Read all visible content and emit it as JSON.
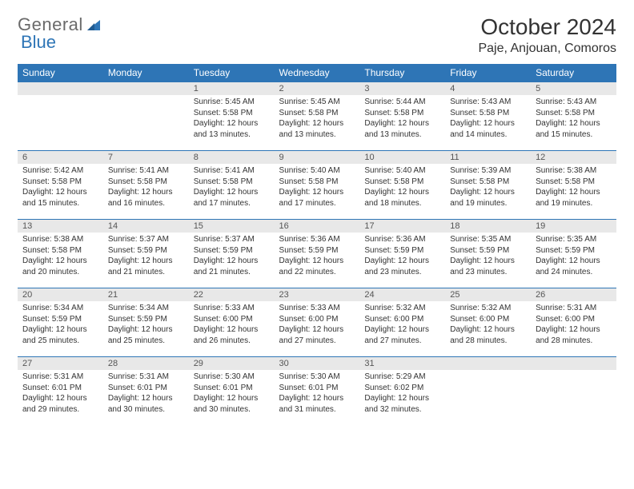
{
  "brand": {
    "part1": "General",
    "part2": "Blue"
  },
  "colors": {
    "header_bg": "#2e75b6",
    "header_text": "#ffffff",
    "daynum_bg": "#e8e8e8",
    "daynum_text": "#555555",
    "body_text": "#333333",
    "row_border": "#2e75b6",
    "logo_gray": "#6a6a6a",
    "logo_blue": "#2e75b6",
    "page_bg": "#ffffff"
  },
  "typography": {
    "month_title_fontsize": 28,
    "location_fontsize": 16,
    "dayheader_fontsize": 12,
    "daynum_fontsize": 11,
    "daydata_fontsize": 10,
    "font_family": "Arial"
  },
  "layout": {
    "columns": 7,
    "rows": 5,
    "start_weekday": "Sunday"
  },
  "title": "October 2024",
  "location": "Paje, Anjouan, Comoros",
  "weekdays": [
    "Sunday",
    "Monday",
    "Tuesday",
    "Wednesday",
    "Thursday",
    "Friday",
    "Saturday"
  ],
  "weeks": [
    [
      null,
      null,
      {
        "n": "1",
        "sr": "Sunrise: 5:45 AM",
        "ss": "Sunset: 5:58 PM",
        "dl": "Daylight: 12 hours and 13 minutes."
      },
      {
        "n": "2",
        "sr": "Sunrise: 5:45 AM",
        "ss": "Sunset: 5:58 PM",
        "dl": "Daylight: 12 hours and 13 minutes."
      },
      {
        "n": "3",
        "sr": "Sunrise: 5:44 AM",
        "ss": "Sunset: 5:58 PM",
        "dl": "Daylight: 12 hours and 13 minutes."
      },
      {
        "n": "4",
        "sr": "Sunrise: 5:43 AM",
        "ss": "Sunset: 5:58 PM",
        "dl": "Daylight: 12 hours and 14 minutes."
      },
      {
        "n": "5",
        "sr": "Sunrise: 5:43 AM",
        "ss": "Sunset: 5:58 PM",
        "dl": "Daylight: 12 hours and 15 minutes."
      }
    ],
    [
      {
        "n": "6",
        "sr": "Sunrise: 5:42 AM",
        "ss": "Sunset: 5:58 PM",
        "dl": "Daylight: 12 hours and 15 minutes."
      },
      {
        "n": "7",
        "sr": "Sunrise: 5:41 AM",
        "ss": "Sunset: 5:58 PM",
        "dl": "Daylight: 12 hours and 16 minutes."
      },
      {
        "n": "8",
        "sr": "Sunrise: 5:41 AM",
        "ss": "Sunset: 5:58 PM",
        "dl": "Daylight: 12 hours and 17 minutes."
      },
      {
        "n": "9",
        "sr": "Sunrise: 5:40 AM",
        "ss": "Sunset: 5:58 PM",
        "dl": "Daylight: 12 hours and 17 minutes."
      },
      {
        "n": "10",
        "sr": "Sunrise: 5:40 AM",
        "ss": "Sunset: 5:58 PM",
        "dl": "Daylight: 12 hours and 18 minutes."
      },
      {
        "n": "11",
        "sr": "Sunrise: 5:39 AM",
        "ss": "Sunset: 5:58 PM",
        "dl": "Daylight: 12 hours and 19 minutes."
      },
      {
        "n": "12",
        "sr": "Sunrise: 5:38 AM",
        "ss": "Sunset: 5:58 PM",
        "dl": "Daylight: 12 hours and 19 minutes."
      }
    ],
    [
      {
        "n": "13",
        "sr": "Sunrise: 5:38 AM",
        "ss": "Sunset: 5:58 PM",
        "dl": "Daylight: 12 hours and 20 minutes."
      },
      {
        "n": "14",
        "sr": "Sunrise: 5:37 AM",
        "ss": "Sunset: 5:59 PM",
        "dl": "Daylight: 12 hours and 21 minutes."
      },
      {
        "n": "15",
        "sr": "Sunrise: 5:37 AM",
        "ss": "Sunset: 5:59 PM",
        "dl": "Daylight: 12 hours and 21 minutes."
      },
      {
        "n": "16",
        "sr": "Sunrise: 5:36 AM",
        "ss": "Sunset: 5:59 PM",
        "dl": "Daylight: 12 hours and 22 minutes."
      },
      {
        "n": "17",
        "sr": "Sunrise: 5:36 AM",
        "ss": "Sunset: 5:59 PM",
        "dl": "Daylight: 12 hours and 23 minutes."
      },
      {
        "n": "18",
        "sr": "Sunrise: 5:35 AM",
        "ss": "Sunset: 5:59 PM",
        "dl": "Daylight: 12 hours and 23 minutes."
      },
      {
        "n": "19",
        "sr": "Sunrise: 5:35 AM",
        "ss": "Sunset: 5:59 PM",
        "dl": "Daylight: 12 hours and 24 minutes."
      }
    ],
    [
      {
        "n": "20",
        "sr": "Sunrise: 5:34 AM",
        "ss": "Sunset: 5:59 PM",
        "dl": "Daylight: 12 hours and 25 minutes."
      },
      {
        "n": "21",
        "sr": "Sunrise: 5:34 AM",
        "ss": "Sunset: 5:59 PM",
        "dl": "Daylight: 12 hours and 25 minutes."
      },
      {
        "n": "22",
        "sr": "Sunrise: 5:33 AM",
        "ss": "Sunset: 6:00 PM",
        "dl": "Daylight: 12 hours and 26 minutes."
      },
      {
        "n": "23",
        "sr": "Sunrise: 5:33 AM",
        "ss": "Sunset: 6:00 PM",
        "dl": "Daylight: 12 hours and 27 minutes."
      },
      {
        "n": "24",
        "sr": "Sunrise: 5:32 AM",
        "ss": "Sunset: 6:00 PM",
        "dl": "Daylight: 12 hours and 27 minutes."
      },
      {
        "n": "25",
        "sr": "Sunrise: 5:32 AM",
        "ss": "Sunset: 6:00 PM",
        "dl": "Daylight: 12 hours and 28 minutes."
      },
      {
        "n": "26",
        "sr": "Sunrise: 5:31 AM",
        "ss": "Sunset: 6:00 PM",
        "dl": "Daylight: 12 hours and 28 minutes."
      }
    ],
    [
      {
        "n": "27",
        "sr": "Sunrise: 5:31 AM",
        "ss": "Sunset: 6:01 PM",
        "dl": "Daylight: 12 hours and 29 minutes."
      },
      {
        "n": "28",
        "sr": "Sunrise: 5:31 AM",
        "ss": "Sunset: 6:01 PM",
        "dl": "Daylight: 12 hours and 30 minutes."
      },
      {
        "n": "29",
        "sr": "Sunrise: 5:30 AM",
        "ss": "Sunset: 6:01 PM",
        "dl": "Daylight: 12 hours and 30 minutes."
      },
      {
        "n": "30",
        "sr": "Sunrise: 5:30 AM",
        "ss": "Sunset: 6:01 PM",
        "dl": "Daylight: 12 hours and 31 minutes."
      },
      {
        "n": "31",
        "sr": "Sunrise: 5:29 AM",
        "ss": "Sunset: 6:02 PM",
        "dl": "Daylight: 12 hours and 32 minutes."
      },
      null,
      null
    ]
  ]
}
